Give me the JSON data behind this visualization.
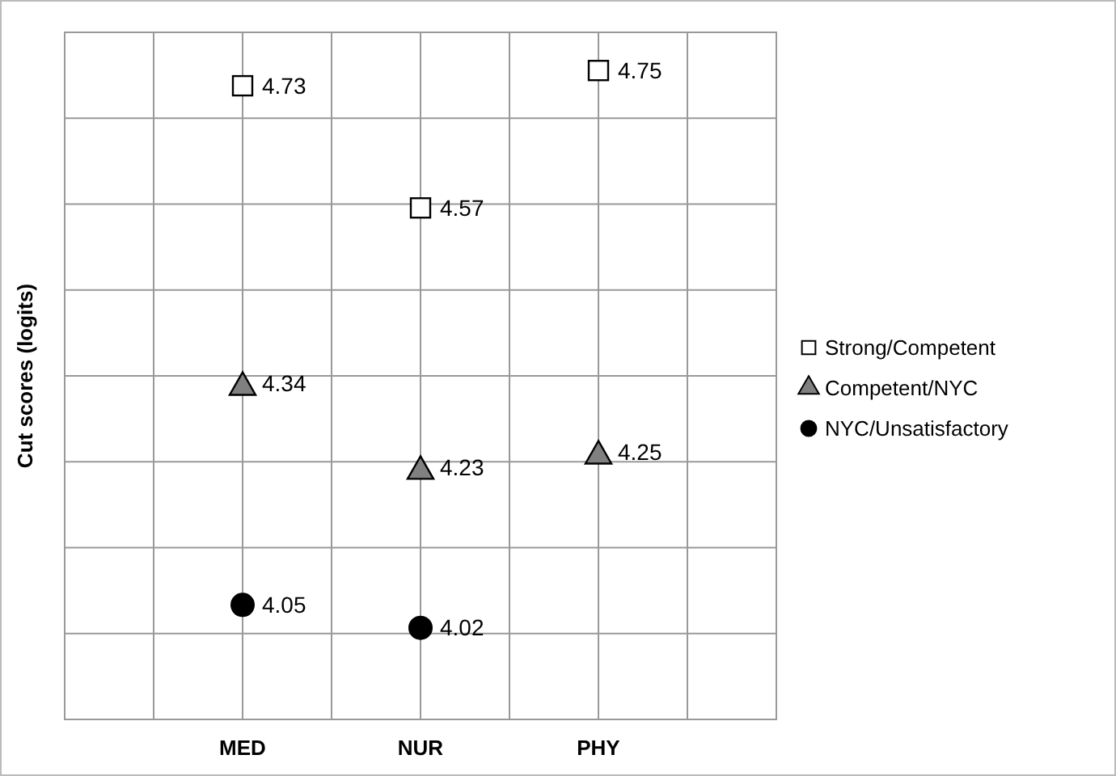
{
  "chart_data": {
    "type": "scatter",
    "ylabel": "Cut scores (logits)",
    "categories": [
      "MED",
      "NUR",
      "PHY"
    ],
    "series": [
      {
        "name": "Strong/Competent",
        "color": "#ffffff",
        "marker": "square",
        "values": [
          4.73,
          4.57,
          4.75
        ]
      },
      {
        "name": "Competent/NYC",
        "color": "#808080",
        "marker": "triangle",
        "values": [
          4.34,
          4.23,
          4.25
        ]
      },
      {
        "name": "NYC/Unsatisfactory",
        "color": "#000000",
        "marker": "circle",
        "values": [
          4.05,
          4.02,
          null
        ]
      }
    ],
    "ylim": [
      3.9,
      4.8
    ],
    "tick_labels": "x",
    "grid": true,
    "legend": "right",
    "data_labels": true
  }
}
